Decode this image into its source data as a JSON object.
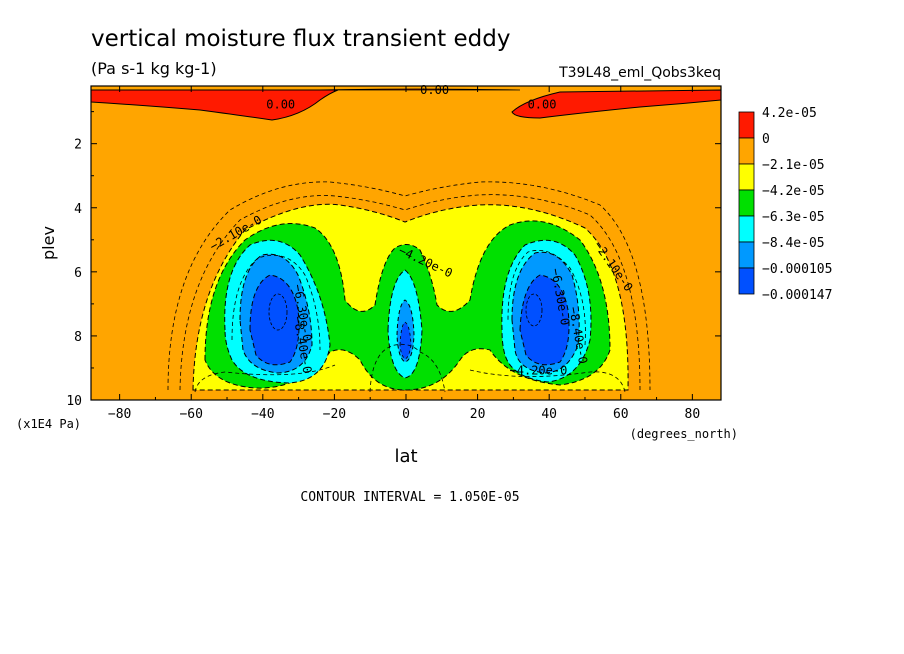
{
  "chart_data": {
    "type": "heatmap",
    "title": "vertical moisture flux transient eddy",
    "units_label": "(Pa s-1 kg kg-1)",
    "experiment": "T39L48_eml_Qobs3keq",
    "xlabel": "lat",
    "x_units": "(degrees_north)",
    "ylabel": "plev",
    "y_units": "(x1E4 Pa)",
    "xlim": [
      -88,
      88
    ],
    "ylim": [
      0.2,
      10
    ],
    "y_inverted": true,
    "x_ticks": [
      -80,
      -60,
      -40,
      -20,
      0,
      20,
      40,
      60,
      80
    ],
    "y_ticks": [
      2,
      4,
      6,
      8,
      10
    ],
    "contour_interval_text": "CONTOUR INTERVAL = 1.050E-05",
    "colorbar": {
      "labels": [
        "4.2e-05",
        "0",
        "−2.1e-05",
        "−4.2e-05",
        "−6.3e-05",
        "−8.4e-05",
        "−0.000105",
        "−0.000147"
      ],
      "colors": [
        "#ff1a00",
        "#ffa500",
        "#ffff00",
        "#00e000",
        "#00ffff",
        "#0099ff",
        "#0050ff"
      ]
    },
    "contour_labels": [
      {
        "text": "0.00",
        "lat": -35,
        "plev": 0.9
      },
      {
        "text": "0.00",
        "lat": 38,
        "plev": 0.9
      },
      {
        "text": "0.00",
        "lat": 8,
        "plev": 0.05
      },
      {
        "text": "−2.10e-0",
        "lat": -47,
        "plev": 4.9
      },
      {
        "text": "−2.10e-0",
        "lat": 57,
        "plev": 5.9
      },
      {
        "text": "−4.20e-0",
        "lat": 5,
        "plev": 5.8
      },
      {
        "text": "−4.20e-0",
        "lat": 37,
        "plev": 9.2
      },
      {
        "text": "−6.30e-0",
        "lat": -30,
        "plev": 7.3
      },
      {
        "text": "−6.30e-0",
        "lat": 42,
        "plev": 6.8
      },
      {
        "text": "−8.40e-0",
        "lat": -30,
        "plev": 8.3
      },
      {
        "text": "−8.40e-0",
        "lat": 47,
        "plev": 8.0
      }
    ]
  }
}
